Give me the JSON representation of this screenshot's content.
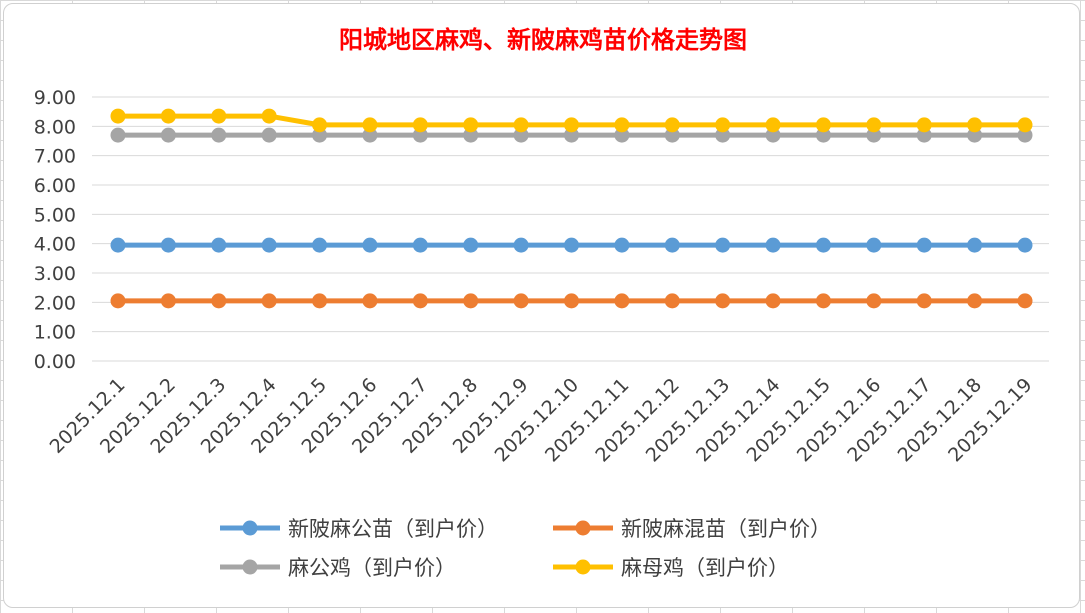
{
  "colors": {
    "title": "#ff0000",
    "grid": "#d9d9d9",
    "series": [
      "#5b9bd5",
      "#ed7d31",
      "#a5a5a5",
      "#ffc000"
    ]
  },
  "chart_data": {
    "type": "line",
    "title": "阳城地区麻鸡、新陂麻鸡苗价格走势图",
    "xlabel": "",
    "ylabel": "",
    "ylim": [
      0,
      9
    ],
    "yticks": [
      "0.00",
      "1.00",
      "2.00",
      "3.00",
      "4.00",
      "5.00",
      "6.00",
      "7.00",
      "8.00",
      "9.00"
    ],
    "grid": true,
    "legend_position": "bottom",
    "x": [
      "2025.12.1",
      "2025.12.2",
      "2025.12.3",
      "2025.12.4",
      "2025.12.5",
      "2025.12.6",
      "2025.12.7",
      "2025.12.8",
      "2025.12.9",
      "2025.12.10",
      "2025.12.11",
      "2025.12.12",
      "2025.12.13",
      "2025.12.14",
      "2025.12.15",
      "2025.12.16",
      "2025.12.17",
      "2025.12.18",
      "2025.12.19"
    ],
    "series": [
      {
        "name": "新陂麻公苗（到户价）",
        "values": [
          3.95,
          3.95,
          3.95,
          3.95,
          3.95,
          3.95,
          3.95,
          3.95,
          3.95,
          3.95,
          3.95,
          3.95,
          3.95,
          3.95,
          3.95,
          3.95,
          3.95,
          3.95,
          3.95
        ]
      },
      {
        "name": "新陂麻混苗（到户价）",
        "values": [
          2.05,
          2.05,
          2.05,
          2.05,
          2.05,
          2.05,
          2.05,
          2.05,
          2.05,
          2.05,
          2.05,
          2.05,
          2.05,
          2.05,
          2.05,
          2.05,
          2.05,
          2.05,
          2.05
        ]
      },
      {
        "name": "麻公鸡（到户价）",
        "values": [
          7.7,
          7.7,
          7.7,
          7.7,
          7.7,
          7.7,
          7.7,
          7.7,
          7.7,
          7.7,
          7.7,
          7.7,
          7.7,
          7.7,
          7.7,
          7.7,
          7.7,
          7.7,
          7.7
        ]
      },
      {
        "name": "麻母鸡（到户价）",
        "values": [
          8.35,
          8.35,
          8.35,
          8.35,
          8.05,
          8.05,
          8.05,
          8.05,
          8.05,
          8.05,
          8.05,
          8.05,
          8.05,
          8.05,
          8.05,
          8.05,
          8.05,
          8.05,
          8.05
        ]
      }
    ]
  }
}
